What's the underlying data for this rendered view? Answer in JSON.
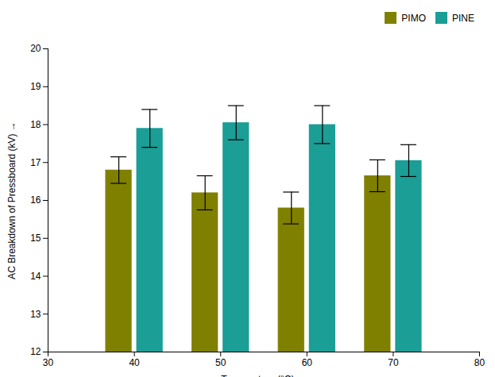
{
  "chart_data": {
    "type": "bar",
    "xlabel": "Temperature (°C)",
    "ylabel": "AC Breakdown of Pressboard (kV)",
    "x": [
      40,
      50,
      60,
      70
    ],
    "series": [
      {
        "name": "PIMO",
        "color": "#808000",
        "values": [
          16.8,
          16.2,
          15.8,
          16.65
        ],
        "errors": [
          0.35,
          0.45,
          0.42,
          0.42
        ]
      },
      {
        "name": "PINE",
        "color": "#1a9e96",
        "values": [
          17.9,
          18.05,
          18.0,
          17.05
        ],
        "errors": [
          0.5,
          0.45,
          0.5,
          0.42
        ]
      }
    ],
    "xlim": [
      30,
      80
    ],
    "xticks": [
      30,
      40,
      50,
      60,
      70,
      80
    ],
    "ylim": [
      12,
      20
    ],
    "yticks": [
      12,
      13,
      14,
      15,
      16,
      17,
      18,
      19,
      20
    ],
    "legend": "upper right",
    "grid": false
  }
}
